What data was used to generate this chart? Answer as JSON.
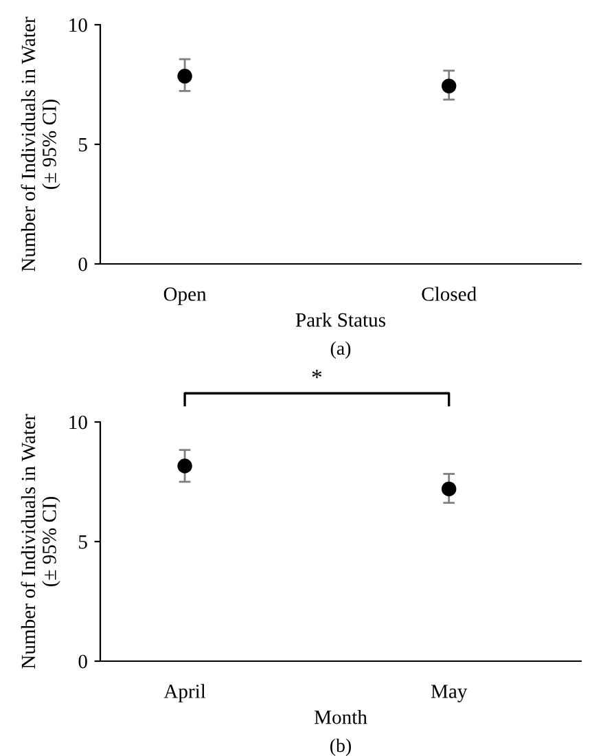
{
  "chart_data": [
    {
      "type": "scatter",
      "xlabel": "Park Status",
      "ylabel": "Number of Individuals in Water\n(± 95% CI)",
      "categories": [
        "Open",
        "Closed"
      ],
      "series": [
        {
          "color": "#000000",
          "values": [
            7.85,
            7.44
          ],
          "errors": [
            [
              7.23,
              8.56
            ],
            [
              6.87,
              8.08
            ]
          ]
        }
      ],
      "ylim": [
        0,
        10
      ],
      "yticks": [
        0,
        5,
        10
      ],
      "marker": "circle",
      "grid": false,
      "annotations": [
        "(a)"
      ]
    },
    {
      "type": "scatter",
      "xlabel": "Month",
      "ylabel": "Number of Individuals in Water\n(± 95% CI)",
      "categories": [
        "April",
        "May"
      ],
      "series": [
        {
          "color": "#000000",
          "values": [
            8.16,
            7.2
          ],
          "errors": [
            [
              7.5,
              8.83
            ],
            [
              6.62,
              7.83
            ]
          ]
        }
      ],
      "ylim": [
        0,
        10
      ],
      "yticks": [
        0,
        5,
        10
      ],
      "marker": "circle",
      "grid": false,
      "annotations": [
        "*",
        "(b)"
      ]
    }
  ]
}
